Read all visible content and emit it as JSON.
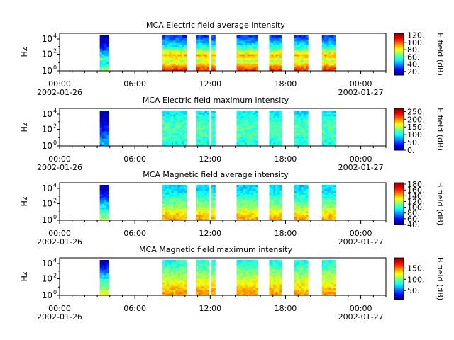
{
  "chart_data": [
    {
      "type": "heatmap",
      "title": "MCA  Electric field average intensity",
      "ylabel": "Hz",
      "y_ticks": [
        {
          "exp": "0"
        },
        {
          "exp": "2"
        },
        {
          "exp": "4"
        }
      ],
      "x_ticks": [
        {
          "time": "00:00",
          "date": "2002-01-26"
        },
        {
          "time": "06:00",
          "date": ""
        },
        {
          "time": "12:00",
          "date": ""
        },
        {
          "time": "18:00",
          "date": ""
        },
        {
          "time": "00:00",
          "date": "2002-01-27"
        }
      ],
      "colorbar": {
        "label": "E field (dB)",
        "range": [
          10,
          125
        ],
        "ticks": [
          "20.",
          "40.",
          "60.",
          "80.",
          "100.",
          "120."
        ],
        "tick_values": [
          20,
          40,
          60,
          80,
          100,
          120
        ]
      },
      "blocks": [
        [
          3.2,
          3.9
        ],
        [
          8.2,
          10.1
        ],
        [
          10.9,
          11.9
        ],
        [
          12.1,
          12.4
        ],
        [
          14.1,
          15.8
        ],
        [
          16.7,
          17.7
        ],
        [
          18.7,
          19.8
        ],
        [
          20.9,
          22.0
        ]
      ],
      "profile": "e_avg"
    },
    {
      "type": "heatmap",
      "title": "MCA  Electric field maximum intensity",
      "ylabel": "Hz",
      "y_ticks": [
        {
          "exp": "0"
        },
        {
          "exp": "2"
        },
        {
          "exp": "4"
        }
      ],
      "x_ticks": [
        {
          "time": "00:00",
          "date": "2002-01-26"
        },
        {
          "time": "06:00",
          "date": ""
        },
        {
          "time": "12:00",
          "date": ""
        },
        {
          "time": "18:00",
          "date": ""
        },
        {
          "time": "00:00",
          "date": "2002-01-27"
        }
      ],
      "colorbar": {
        "label": "E field (dB)",
        "range": [
          0,
          270
        ],
        "ticks": [
          "0.",
          "50.",
          "100.",
          "150.",
          "200.",
          "250."
        ],
        "tick_values": [
          0,
          50,
          100,
          150,
          200,
          250
        ]
      },
      "blocks": [
        [
          3.2,
          3.9
        ],
        [
          8.2,
          10.1
        ],
        [
          10.9,
          11.9
        ],
        [
          12.1,
          12.4
        ],
        [
          14.1,
          15.8
        ],
        [
          16.7,
          17.7
        ],
        [
          18.7,
          19.8
        ],
        [
          20.9,
          22.0
        ]
      ],
      "profile": "e_max"
    },
    {
      "type": "heatmap",
      "title": "MCA  Magnetic field average intensity",
      "ylabel": "Hz",
      "y_ticks": [
        {
          "exp": "0"
        },
        {
          "exp": "2"
        },
        {
          "exp": "4"
        }
      ],
      "x_ticks": [
        {
          "time": "00:00",
          "date": "2002-01-26"
        },
        {
          "time": "06:00",
          "date": ""
        },
        {
          "time": "12:00",
          "date": ""
        },
        {
          "time": "18:00",
          "date": ""
        },
        {
          "time": "00:00",
          "date": "2002-01-27"
        }
      ],
      "colorbar": {
        "label": "B field (dB)",
        "range": [
          40,
          185
        ],
        "ticks": [
          "40.",
          "60.",
          "80.",
          "100.",
          "120.",
          "140.",
          "160.",
          "180."
        ],
        "tick_values": [
          40,
          60,
          80,
          100,
          120,
          140,
          160,
          180
        ]
      },
      "blocks": [
        [
          3.2,
          3.9
        ],
        [
          8.2,
          10.1
        ],
        [
          10.9,
          11.9
        ],
        [
          12.1,
          12.4
        ],
        [
          14.1,
          15.8
        ],
        [
          16.7,
          17.7
        ],
        [
          18.7,
          19.8
        ],
        [
          20.9,
          22.0
        ]
      ],
      "profile": "b_avg"
    },
    {
      "type": "heatmap",
      "title": "MCA  Magnetic field maximum intensity",
      "ylabel": "Hz",
      "y_ticks": [
        {
          "exp": "0"
        },
        {
          "exp": "2"
        },
        {
          "exp": "4"
        }
      ],
      "x_ticks": [
        {
          "time": "00:00",
          "date": "2002-01-26"
        },
        {
          "time": "06:00",
          "date": ""
        },
        {
          "time": "12:00",
          "date": ""
        },
        {
          "time": "18:00",
          "date": ""
        },
        {
          "time": "00:00",
          "date": "2002-01-27"
        }
      ],
      "colorbar": {
        "label": "B field (dB)",
        "range": [
          10,
          195
        ],
        "ticks": [
          "50.",
          "100.",
          "150."
        ],
        "tick_values": [
          50,
          100,
          150
        ]
      },
      "blocks": [
        [
          3.2,
          3.9
        ],
        [
          8.2,
          10.1
        ],
        [
          10.9,
          11.9
        ],
        [
          12.1,
          12.4
        ],
        [
          14.1,
          15.8
        ],
        [
          16.7,
          17.7
        ],
        [
          18.7,
          19.8
        ],
        [
          20.9,
          22.0
        ]
      ],
      "profile": "b_max"
    }
  ]
}
